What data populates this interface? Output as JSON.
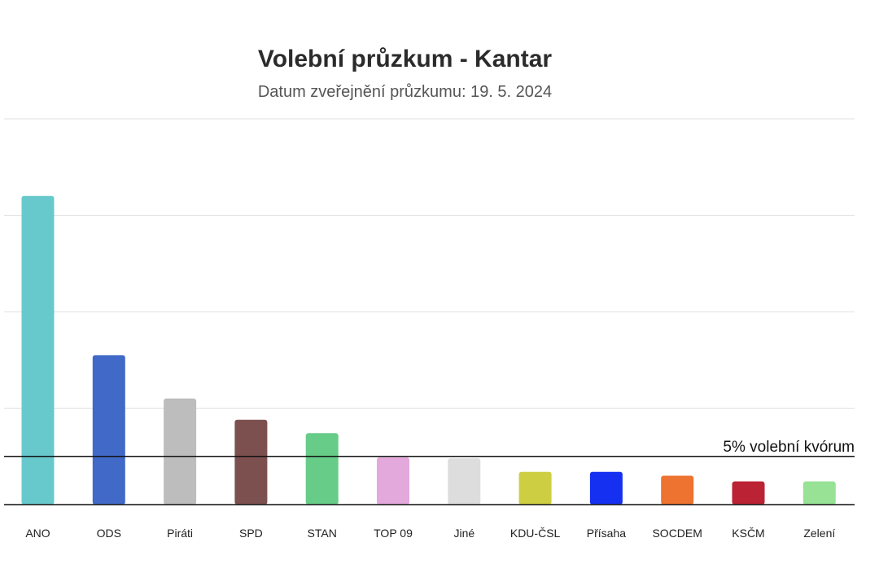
{
  "chart_data": {
    "type": "bar",
    "title": "Volební průzkum - Kantar",
    "subtitle": "Datum zveřejnění průzkumu: 19. 5. 2024",
    "xlabel": "",
    "ylabel": "",
    "ylim": [
      0,
      40
    ],
    "grid": true,
    "categories": [
      "ANO",
      "ODS",
      "Piráti",
      "SPD",
      "STAN",
      "TOP 09",
      "Jiné",
      "KDU-ČSL",
      "Přísaha",
      "SOCDEM",
      "KSČM",
      "Zelení"
    ],
    "values": [
      32,
      15.5,
      11,
      8.8,
      7.4,
      4.9,
      4.8,
      3.4,
      3.4,
      3.0,
      2.4,
      2.4
    ],
    "colors": [
      "#68c9cd",
      "#4169c8",
      "#bdbdbd",
      "#7d5050",
      "#66cc88",
      "#e3a8dc",
      "#dddddd",
      "#cece42",
      "#1530f0",
      "#ee7230",
      "#bb2233",
      "#98e296"
    ],
    "threshold": {
      "value": 5,
      "label": "5% volební kvórum"
    }
  }
}
